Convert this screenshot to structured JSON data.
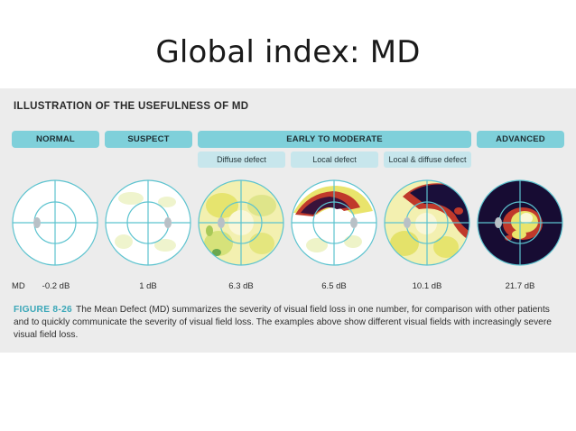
{
  "slide": {
    "title": "Global index: MD"
  },
  "figure": {
    "heading": "ILLUSTRATION OF THE USEFULNESS OF MD",
    "categories": [
      {
        "label": "NORMAL"
      },
      {
        "label": "SUSPECT"
      },
      {
        "label": "EARLY TO MODERATE"
      },
      {
        "label": "ADVANCED"
      }
    ],
    "subcategories": [
      {
        "label": "Diffuse defect"
      },
      {
        "label": "Local defect"
      },
      {
        "label": "Local & diffuse defect"
      }
    ],
    "md_label": "MD",
    "fields": [
      {
        "md": "-0.2 dB"
      },
      {
        "md": "1 dB"
      },
      {
        "md": "6.3 dB"
      },
      {
        "md": "6.5 dB"
      },
      {
        "md": "10.1 dB"
      },
      {
        "md": "21.7 dB"
      }
    ],
    "caption": {
      "figure_number": "FIGURE 8-26",
      "text": "The Mean Defect (MD) summarizes the severity of visual field loss in one number, for comparison with other patients and to quickly communicate the severity of visual field loss. The examples above show different visual fields with increasingly severe visual field loss."
    },
    "colors": {
      "category_bar": "#7fd0da",
      "subcategory_bar": "#c7e6ec",
      "caption_accent": "#3aa7b8",
      "axis_lines": "#5cc3cf",
      "defect_severe": "#1a0f3a",
      "defect_moderate": "#c0392b",
      "defect_mild": "#f2e25a"
    }
  }
}
